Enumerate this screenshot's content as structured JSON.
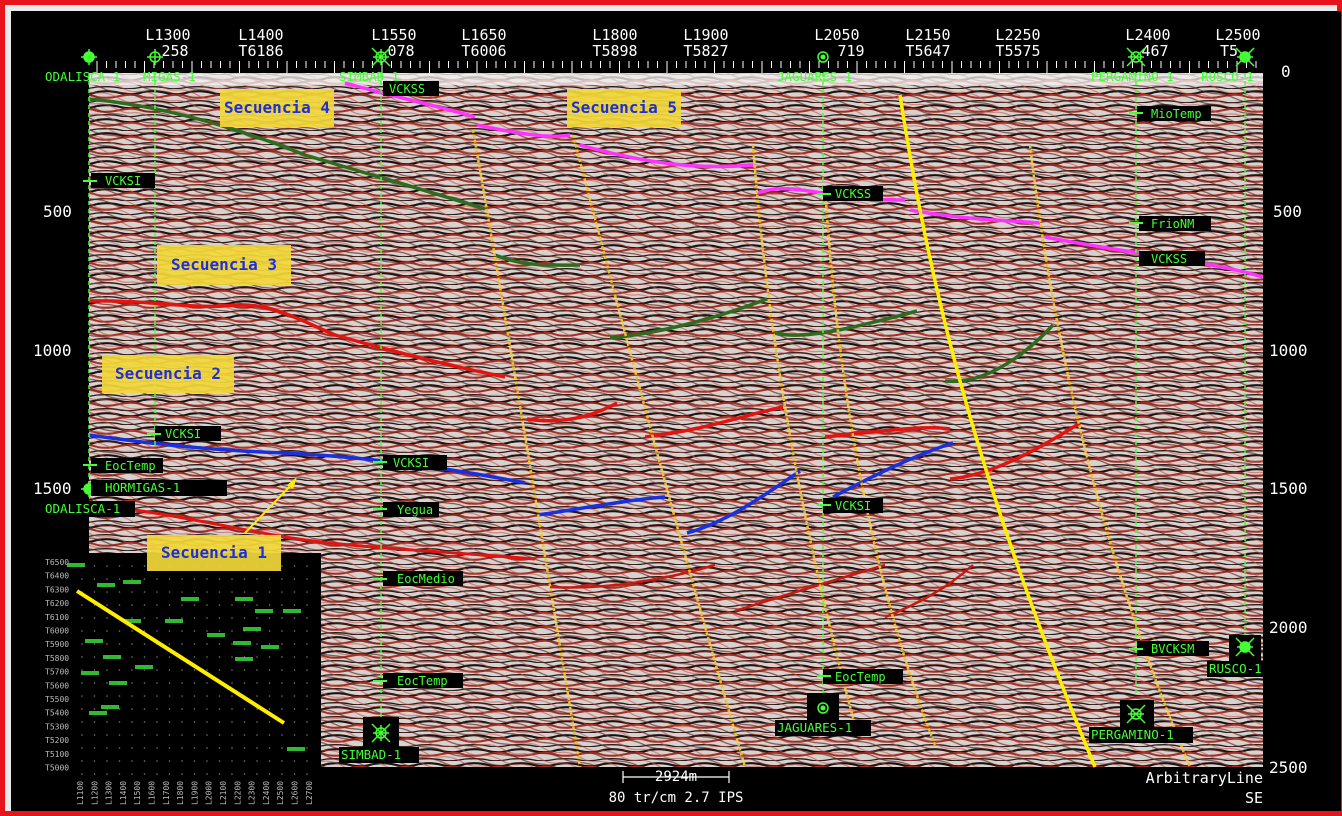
{
  "top_labels": [
    {
      "line": "L1300",
      "trace": "258"
    },
    {
      "line": "L1400",
      "trace": "T6186"
    },
    {
      "line": "L1550",
      "trace": "078"
    },
    {
      "line": "L1650",
      "trace": "T6006"
    },
    {
      "line": "L1800",
      "trace": "T5898"
    },
    {
      "line": "L1900",
      "trace": "T5827"
    },
    {
      "line": "L2050",
      "trace": "719"
    },
    {
      "line": "L2150",
      "trace": "T5647"
    },
    {
      "line": "L2250",
      "trace": "T5575"
    },
    {
      "line": "L2400",
      "trace": "467"
    },
    {
      "line": "L2500",
      "trace": "T5"
    }
  ],
  "wells_top": [
    "ODALISCA-1",
    "MIGAS-1",
    "SIMBAD-1",
    "JAGUARES-1",
    "PERGAMINO-1",
    "RUSCO-1"
  ],
  "wells_bottom": [
    "ODALISCA-1",
    "HORMIGAS-1",
    "SIMBAD-1",
    "JAGUARES-1",
    "PERGAMINO-1",
    "RUSCO-1"
  ],
  "time_axis_left": [
    "500",
    "1000",
    "1500"
  ],
  "time_axis_right": [
    "0",
    "500",
    "1000",
    "1500",
    "2000",
    "2500"
  ],
  "sequences": [
    "Secuencia 4",
    "Secuencia 5",
    "Secuencia 3",
    "Secuencia 2",
    "Secuencia 1"
  ],
  "markers": [
    "VCKSS",
    "MioTemp",
    "VCKSI",
    "VCKSS",
    "FrioNM",
    "VCKSS",
    "VCKSI",
    "EocTemp",
    "VCKSI",
    "Yegua",
    "VCKSI",
    "EocMedio",
    "EocTemp",
    "EocTemp",
    "BVCKSM"
  ],
  "footer": {
    "scale_bar": "2924m",
    "scale_text": "80 tr/cm 2.7 IPS",
    "line_type": "ArbitraryLine",
    "direction": "SE"
  },
  "inset_map": {
    "y_labels": [
      "T6500",
      "T6400",
      "T6300",
      "T6200",
      "T6100",
      "T6000",
      "T5900",
      "T5800",
      "T5700",
      "T5600",
      "T5500",
      "T5400",
      "T5300",
      "T5200",
      "T5100",
      "T5000"
    ],
    "x_labels": [
      "L1100",
      "L1200",
      "L1300",
      "L1400",
      "L1500",
      "L1600",
      "L1700",
      "L1800",
      "L1900",
      "L2000",
      "L2100",
      "L2200",
      "L2300",
      "L2400",
      "L2500",
      "L2600",
      "L2700"
    ],
    "line_color": "#ffee00"
  },
  "colors": {
    "frame": "#e8141c",
    "horizon_green": "#2e6b1f",
    "horizon_magenta": "#ff33ff",
    "horizon_red": "#e3140f",
    "horizon_blue": "#1a2fe0",
    "fault": "#f4c21a",
    "well": "#44ff33",
    "seq_box": "#f2d83a",
    "seq_text": "#1d2fd6"
  }
}
